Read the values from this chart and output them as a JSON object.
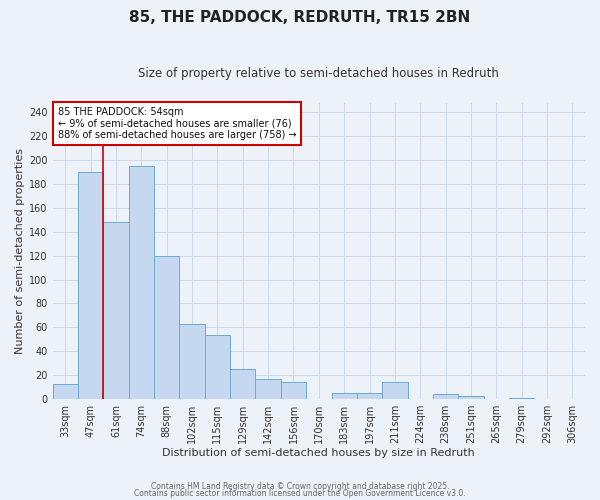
{
  "title": "85, THE PADDOCK, REDRUTH, TR15 2BN",
  "subtitle": "Size of property relative to semi-detached houses in Redruth",
  "xlabel": "Distribution of semi-detached houses by size in Redruth",
  "ylabel": "Number of semi-detached properties",
  "bar_labels": [
    "33sqm",
    "47sqm",
    "61sqm",
    "74sqm",
    "88sqm",
    "102sqm",
    "115sqm",
    "129sqm",
    "142sqm",
    "156sqm",
    "170sqm",
    "183sqm",
    "197sqm",
    "211sqm",
    "224sqm",
    "238sqm",
    "251sqm",
    "265sqm",
    "279sqm",
    "292sqm",
    "306sqm"
  ],
  "bar_heights": [
    13,
    190,
    148,
    195,
    120,
    63,
    54,
    25,
    17,
    14,
    0,
    5,
    5,
    14,
    0,
    4,
    3,
    0,
    1,
    0,
    0
  ],
  "bar_color": "#c5d8f0",
  "bar_edge_color": "#6aaad4",
  "vline_x_idx": 1.5,
  "annotation_title": "85 THE PADDOCK: 54sqm",
  "annotation_line1": "← 9% of semi-detached houses are smaller (76)",
  "annotation_line2": "88% of semi-detached houses are larger (758) →",
  "annotation_box_color": "#ffffff",
  "annotation_border_color": "#cc0000",
  "vline_color": "#cc0000",
  "ylim": [
    0,
    248
  ],
  "yticks": [
    0,
    20,
    40,
    60,
    80,
    100,
    120,
    140,
    160,
    180,
    200,
    220,
    240
  ],
  "grid_color": "#ccd8ea",
  "bg_color": "#edf2f9",
  "footer_line1": "Contains HM Land Registry data © Crown copyright and database right 2025.",
  "footer_line2": "Contains public sector information licensed under the Open Government Licence v3.0.",
  "title_fontsize": 11,
  "subtitle_fontsize": 8.5,
  "axis_label_fontsize": 8,
  "tick_fontsize": 7,
  "annotation_fontsize": 7,
  "footer_fontsize": 5.5
}
